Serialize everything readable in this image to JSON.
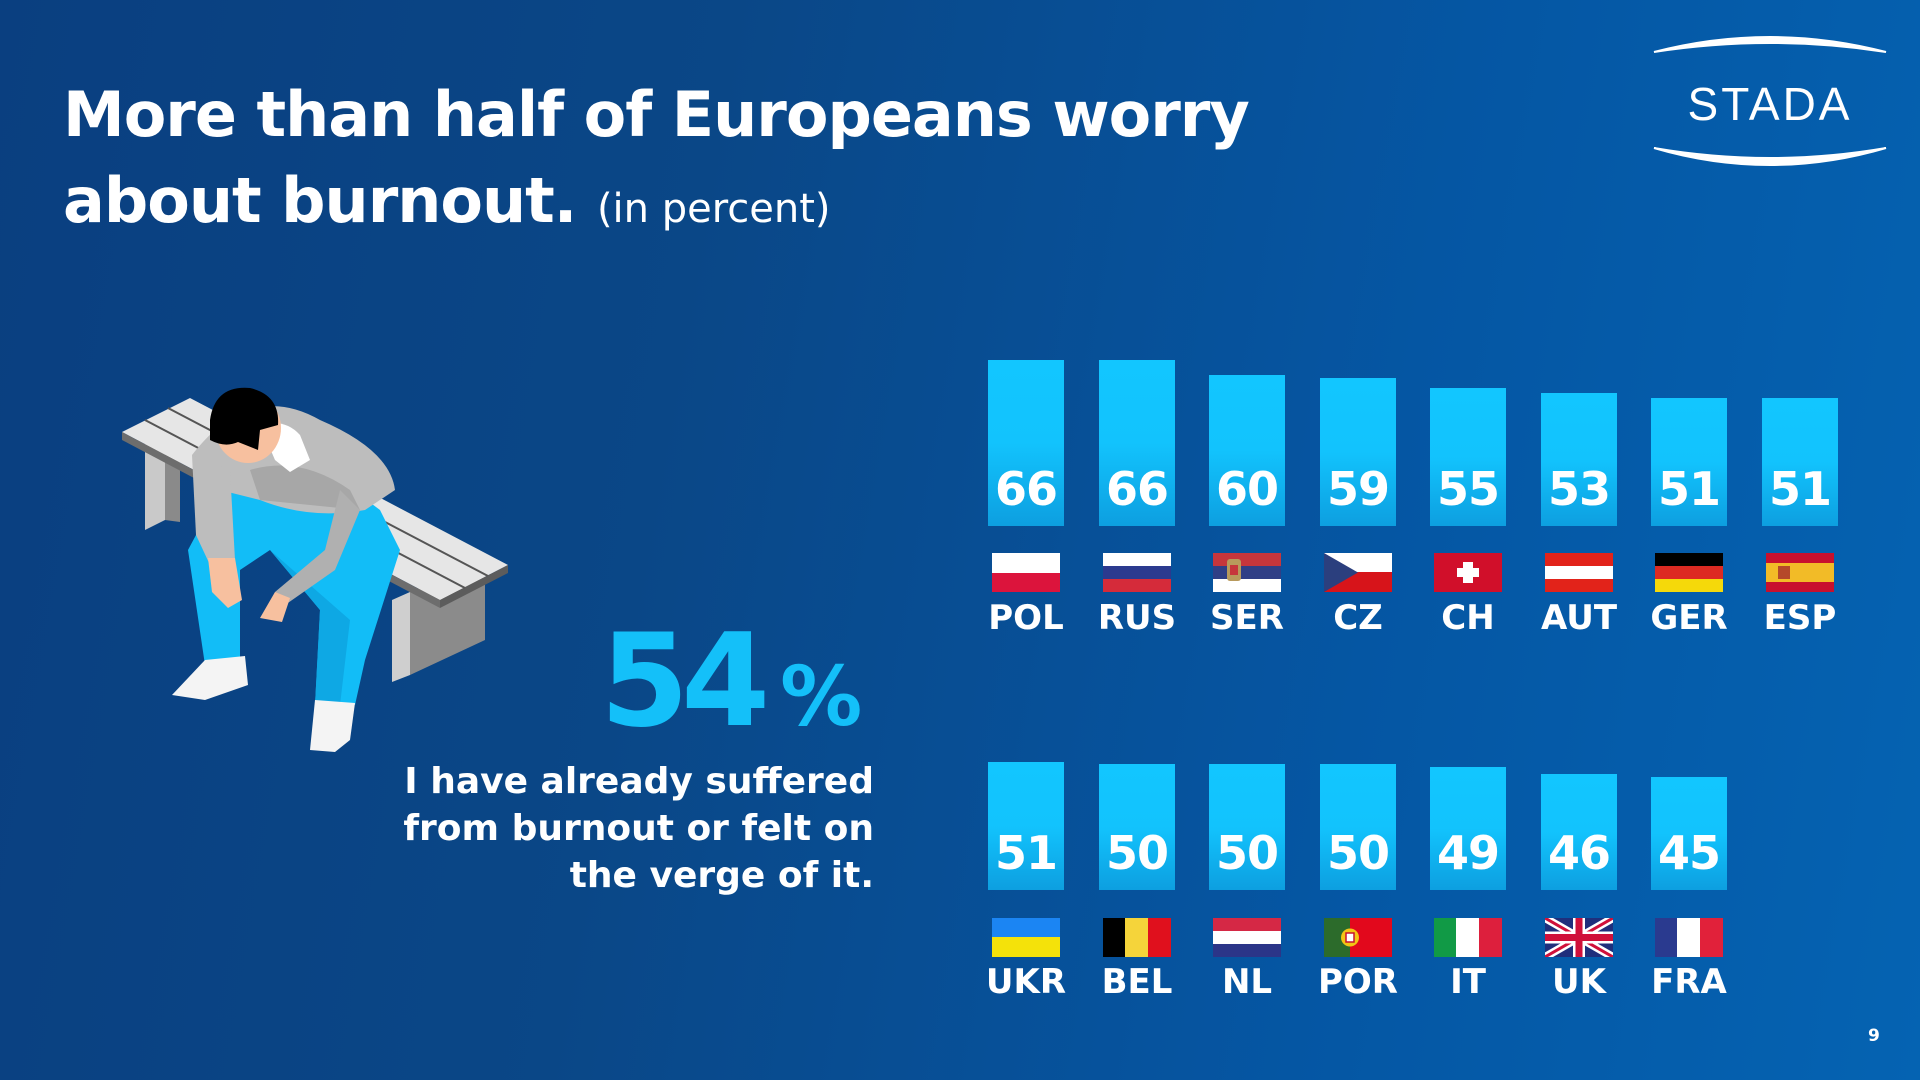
{
  "title": {
    "line1": "More than half of Europeans worry",
    "line2": "about burnout.",
    "subtitle": "(in percent)"
  },
  "logo": {
    "text": "STADA"
  },
  "illustration": {
    "description": "person-sitting-on-bench-exhausted"
  },
  "highlight": {
    "value": "54",
    "unit": "%",
    "statement": "I have already suffered from burnout or felt on the verge of it."
  },
  "colors": {
    "accent": "#14c0f9",
    "bar": "#12c6ff",
    "background_left": "#0a3f80",
    "background_right": "#0563b2"
  },
  "chart_data": {
    "type": "bar",
    "title": "More than half of Europeans worry about burnout. (in percent)",
    "xlabel": "",
    "ylabel": "percent",
    "ylim": [
      0,
      66
    ],
    "grid": false,
    "legend": "none",
    "rows": [
      {
        "categories": [
          "POL",
          "RUS",
          "SER",
          "CZ",
          "CH",
          "AUT",
          "GER",
          "ESP"
        ],
        "values": [
          66,
          66,
          60,
          59,
          55,
          53,
          51,
          51
        ],
        "flags": [
          "poland",
          "russia",
          "serbia",
          "czechia",
          "switzerland",
          "austria",
          "germany",
          "spain"
        ]
      },
      {
        "categories": [
          "UKR",
          "BEL",
          "NL",
          "POR",
          "IT",
          "UK",
          "FRA"
        ],
        "values": [
          51,
          50,
          50,
          50,
          49,
          46,
          45
        ],
        "flags": [
          "ukraine",
          "belgium",
          "netherlands",
          "portugal",
          "italy",
          "united-kingdom",
          "france"
        ]
      }
    ]
  },
  "page_number": "9"
}
